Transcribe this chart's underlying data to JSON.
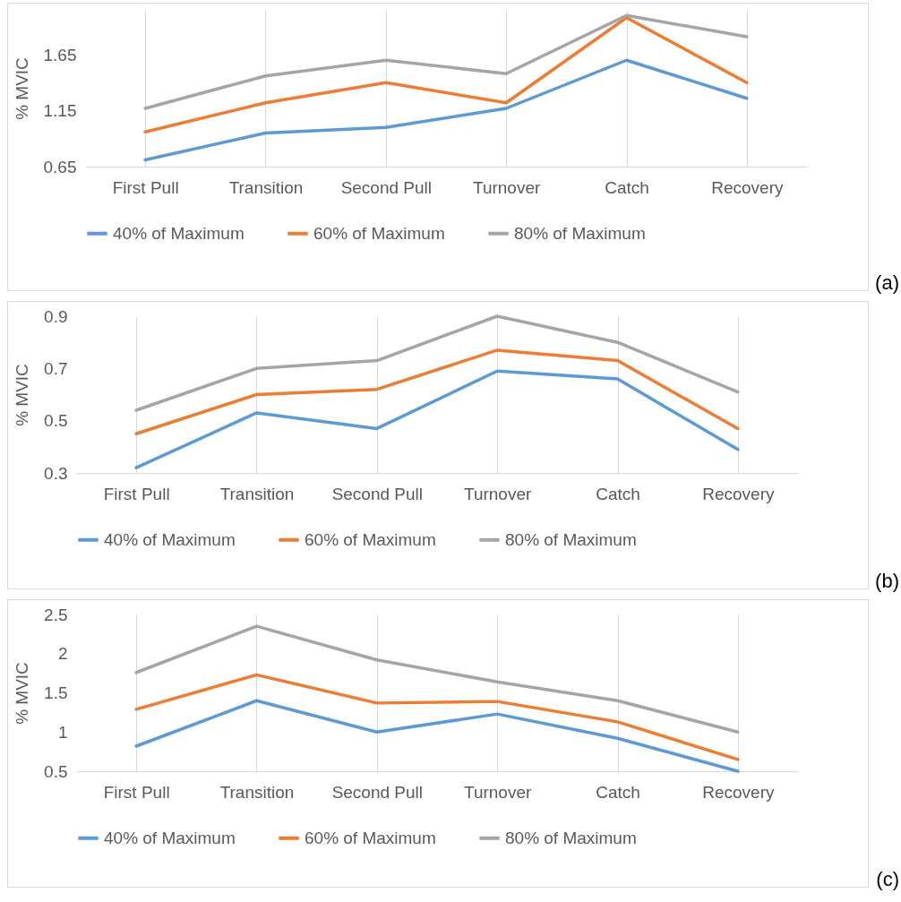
{
  "chart_data": [
    {
      "type": "line",
      "ylabel": "% MVIC",
      "categories": [
        "First Pull",
        "Transition",
        "Second Pull",
        "Turnover",
        "Catch",
        "Recovery"
      ],
      "ylim": [
        0.65,
        2.05
      ],
      "yticks": [
        0.65,
        1.15,
        1.65
      ],
      "grid": "x",
      "legend": "bottom",
      "annotations": [
        "(a)"
      ],
      "series": [
        {
          "name": "40% of Maximum",
          "color": "#5b9bd5",
          "values": [
            0.71,
            0.95,
            1.0,
            1.17,
            1.6,
            1.26
          ]
        },
        {
          "name": "60% of Maximum",
          "color": "#ed7d31",
          "values": [
            0.96,
            1.22,
            1.4,
            1.22,
            1.98,
            1.4
          ]
        },
        {
          "name": "80% of Maximum",
          "color": "#a5a5a5",
          "values": [
            1.17,
            1.46,
            1.6,
            1.48,
            2.0,
            1.81
          ]
        }
      ]
    },
    {
      "type": "line",
      "ylabel": "% MVIC",
      "categories": [
        "First Pull",
        "Transition",
        "Second Pull",
        "Turnover",
        "Catch",
        "Recovery"
      ],
      "ylim": [
        0.3,
        0.9
      ],
      "yticks": [
        0.3,
        0.5,
        0.7,
        0.9
      ],
      "grid": "x",
      "legend": "bottom",
      "annotations": [
        "(b)"
      ],
      "series": [
        {
          "name": "40% of Maximum",
          "color": "#5b9bd5",
          "values": [
            0.32,
            0.53,
            0.47,
            0.69,
            0.66,
            0.39
          ]
        },
        {
          "name": "60% of Maximum",
          "color": "#ed7d31",
          "values": [
            0.45,
            0.6,
            0.62,
            0.77,
            0.73,
            0.47
          ]
        },
        {
          "name": "80% of Maximum",
          "color": "#a5a5a5",
          "values": [
            0.54,
            0.7,
            0.73,
            0.9,
            0.8,
            0.61
          ]
        }
      ]
    },
    {
      "type": "line",
      "ylabel": "% MVIC",
      "categories": [
        "First Pull",
        "Transition",
        "Second Pull",
        "Turnover",
        "Catch",
        "Recovery"
      ],
      "ylim": [
        0.5,
        2.5
      ],
      "yticks": [
        0.5,
        1,
        1.5,
        2,
        2.5
      ],
      "grid": "x",
      "legend": "bottom",
      "annotations": [
        "(c)"
      ],
      "series": [
        {
          "name": "40% of Maximum",
          "color": "#5b9bd5",
          "values": [
            0.82,
            1.4,
            1.0,
            1.23,
            0.92,
            0.5
          ]
        },
        {
          "name": "60% of Maximum",
          "color": "#ed7d31",
          "values": [
            1.29,
            1.73,
            1.37,
            1.39,
            1.13,
            0.65
          ]
        },
        {
          "name": "80% of Maximum",
          "color": "#a5a5a5",
          "values": [
            1.76,
            2.35,
            1.92,
            1.64,
            1.4,
            1.0
          ]
        }
      ]
    }
  ]
}
